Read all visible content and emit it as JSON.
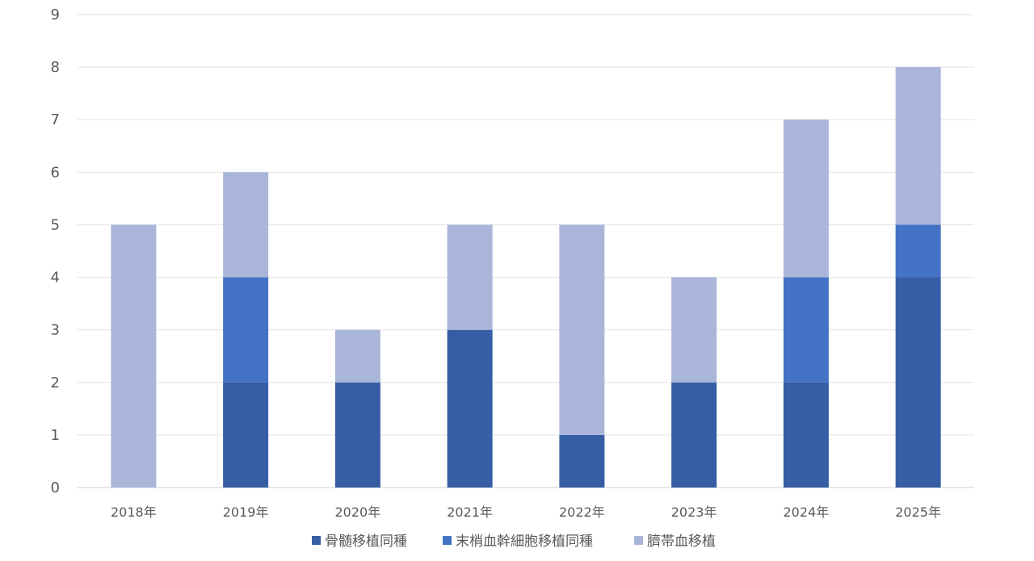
{
  "chart_data": {
    "type": "bar",
    "stacked": true,
    "title": "",
    "xlabel": "",
    "ylabel": "",
    "categories": [
      "2018年",
      "2019年",
      "2020年",
      "2021年",
      "2022年",
      "2023年",
      "2024年",
      "2025年"
    ],
    "series": [
      {
        "name": "骨髄移植同種",
        "color": "#365EA5",
        "values": [
          0,
          2,
          2,
          3,
          1,
          2,
          2,
          4
        ]
      },
      {
        "name": "末梢血幹細胞移植同種",
        "color": "#4472C4",
        "values": [
          0,
          2,
          0,
          0,
          0,
          0,
          2,
          1
        ]
      },
      {
        "name": "臍帯血移植",
        "color": "#A9B6DA",
        "values": [
          5,
          2,
          1,
          2,
          4,
          2,
          3,
          3
        ]
      }
    ],
    "ylim": [
      0,
      9
    ],
    "yticks": [
      0,
      1,
      2,
      3,
      4,
      5,
      6,
      7,
      8,
      9
    ],
    "grid": true,
    "legend": "bottom"
  }
}
